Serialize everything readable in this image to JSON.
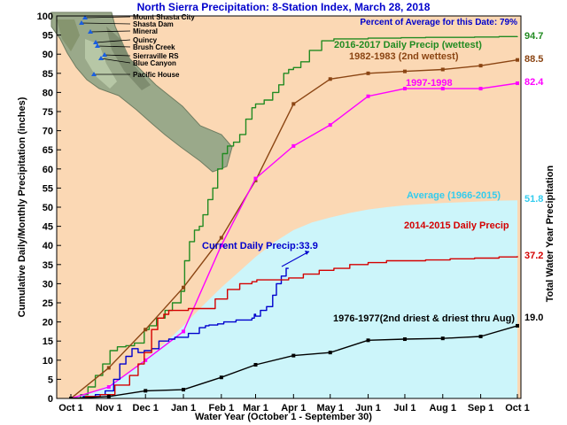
{
  "chart_data": {
    "type": "line",
    "title": "North Sierra Precipitation: 8-Station Index, March 28, 2018",
    "percent_label": "Percent of Average for this Date: 79%",
    "xlabel": "Water Year (October 1 - September 30)",
    "ylabel": "Cumulative Daily/Monthly Precipitation (inches)",
    "ylabel_right": "Total Water Year Precipitation",
    "xlim": [
      0,
      365
    ],
    "ylim": [
      0,
      100
    ],
    "yticks": [
      0,
      5,
      10,
      15,
      20,
      25,
      30,
      35,
      40,
      45,
      50,
      55,
      60,
      65,
      70,
      75,
      80,
      85,
      90,
      95,
      100
    ],
    "xticks": [
      {
        "label": "Oct 1",
        "x": 0
      },
      {
        "label": "Nov 1",
        "x": 31
      },
      {
        "label": "Dec 1",
        "x": 61
      },
      {
        "label": "Jan 1",
        "x": 92
      },
      {
        "label": "Feb 1",
        "x": 123
      },
      {
        "label": "Mar 1",
        "x": 151
      },
      {
        "label": "Apr 1",
        "x": 182
      },
      {
        "label": "May 1",
        "x": 212
      },
      {
        "label": "Jun 1",
        "x": 243
      },
      {
        "label": "Jul 1",
        "x": 273
      },
      {
        "label": "Aug 1",
        "x": 304
      },
      {
        "label": "Sep 1",
        "x": 335
      },
      {
        "label": "Oct 1",
        "x": 365
      }
    ],
    "map_stations": [
      "Mount Shasta City",
      "Shasta Dam",
      "Mineral",
      "Quincy",
      "Brush Creek",
      "Sierraville RS",
      "Blue Canyon",
      "Pacific House"
    ],
    "series": [
      {
        "name": "Average (1966-2015)",
        "kind": "area",
        "color": "#ccf5fa",
        "label_color": "#33ccee",
        "total": "51.8",
        "x": [
          0,
          15,
          31,
          46,
          61,
          77,
          92,
          107,
          123,
          137,
          151,
          167,
          182,
          197,
          212,
          228,
          243,
          258,
          273,
          289,
          304,
          320,
          335,
          350,
          365
        ],
        "y": [
          0,
          1.2,
          3.5,
          6.5,
          10.5,
          14.5,
          19,
          24,
          29,
          33,
          37,
          41,
          44,
          46,
          47.3,
          48.5,
          49.4,
          50,
          50.5,
          50.8,
          51.1,
          51.3,
          51.5,
          51.7,
          51.8
        ]
      },
      {
        "name": "2016-2017 Daily Precip (wettest)",
        "kind": "step",
        "color": "#228b22",
        "total": "94.7",
        "x": [
          0,
          8,
          14,
          20,
          26,
          32,
          38,
          45,
          52,
          60,
          64,
          70,
          77,
          83,
          90,
          93,
          97,
          101,
          105,
          108,
          112,
          116,
          120,
          124,
          128,
          133,
          138,
          143,
          148,
          151,
          158,
          165,
          170,
          174,
          178,
          182,
          188,
          195,
          205,
          215,
          225,
          235,
          243,
          255,
          270,
          290,
          310,
          330,
          350,
          365
        ],
        "y": [
          0,
          1,
          3,
          6,
          9,
          12.5,
          13.5,
          13.8,
          14.5,
          18,
          19,
          21,
          23,
          25,
          28,
          36,
          41,
          44,
          45,
          48,
          52,
          55,
          60,
          64,
          66,
          67,
          69,
          73,
          76,
          77,
          78,
          80,
          82,
          85,
          86,
          86.5,
          88,
          91,
          93.5,
          94,
          94,
          94,
          94.2,
          94.2,
          94.3,
          94.4,
          94.4,
          94.5,
          94.6,
          94.7
        ]
      },
      {
        "name": "1982-1983 (2nd wettest)",
        "kind": "monthly",
        "color": "#8b4513",
        "total": "88.5",
        "x": [
          0,
          31,
          61,
          92,
          123,
          151,
          182,
          212,
          243,
          273,
          304,
          335,
          365
        ],
        "y": [
          0,
          8,
          18,
          29,
          42,
          57,
          77,
          83.5,
          85,
          85.5,
          86,
          87,
          88.5
        ]
      },
      {
        "name": "1997-1998",
        "kind": "monthly",
        "color": "#ff00ff",
        "total": "82.4",
        "x": [
          0,
          31,
          61,
          92,
          123,
          151,
          182,
          212,
          243,
          273,
          304,
          335,
          365
        ],
        "y": [
          0,
          3,
          10,
          17.5,
          40,
          57.5,
          66,
          71.5,
          79,
          81,
          81,
          81,
          82.4
        ]
      },
      {
        "name": "Current Daily Precip:33.9",
        "kind": "step",
        "color": "#0000cd",
        "total": "",
        "x": [
          0,
          10,
          20,
          28,
          35,
          40,
          45,
          50,
          55,
          60,
          66,
          72,
          80,
          85,
          90,
          96,
          105,
          110,
          113,
          120,
          125,
          135,
          148,
          150,
          151,
          155,
          160,
          165,
          168,
          172,
          176,
          178
        ],
        "y": [
          0,
          0.5,
          1,
          2,
          5,
          9,
          11,
          13,
          12,
          12.5,
          13,
          15,
          15.5,
          16,
          16,
          17,
          18.5,
          19,
          19.2,
          19.5,
          20,
          20.5,
          21,
          22,
          21.5,
          23,
          24,
          27,
          30,
          32,
          34,
          34
        ]
      },
      {
        "name": "2014-2015 Daily Precip",
        "kind": "step",
        "color": "#d40000",
        "total": "37.2",
        "x": [
          0,
          12,
          24,
          36,
          48,
          55,
          60,
          66,
          71,
          76,
          80,
          92,
          96,
          102,
          112,
          118,
          128,
          138,
          148,
          152,
          163,
          178,
          190,
          203,
          215,
          228,
          243,
          258,
          273,
          290,
          310,
          330,
          350,
          365
        ],
        "y": [
          0,
          0.5,
          1,
          3.5,
          6,
          9,
          12,
          18,
          21,
          22,
          23,
          23,
          23.5,
          23.5,
          23.5,
          26,
          28.5,
          30,
          30.5,
          31,
          31,
          31.5,
          32.5,
          33.5,
          34,
          35,
          35.5,
          36,
          36,
          36.2,
          36.5,
          36.7,
          37,
          37.2
        ]
      },
      {
        "name": "1976-1977(2nd driest & driest thru Aug)",
        "kind": "monthly",
        "color": "#000000",
        "total": "19.0",
        "x": [
          0,
          31,
          61,
          92,
          123,
          151,
          182,
          212,
          243,
          273,
          304,
          335,
          365
        ],
        "y": [
          0,
          0.5,
          2,
          2.3,
          5.5,
          8.8,
          11.2,
          12,
          15.2,
          15.5,
          15.7,
          16.2,
          19
        ]
      }
    ]
  }
}
